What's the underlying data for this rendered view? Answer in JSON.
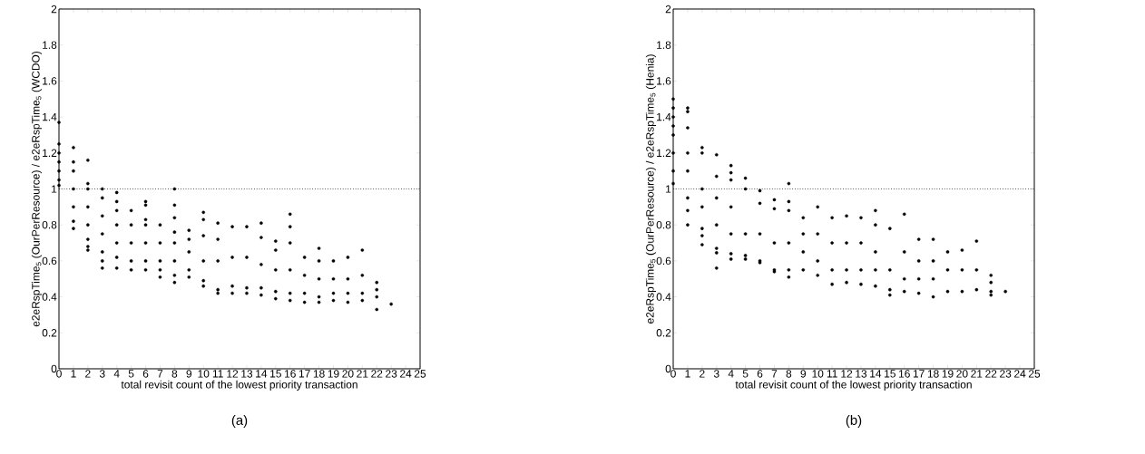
{
  "chart_data": [
    {
      "type": "scatter",
      "color": "#000000",
      "xlabel": "total revisit count of the lowest priority transaction",
      "ylabel": "e2eRspTime$_{5}$ (OurPerResource) / e2eRspTime$_{5}$ (WCDO)",
      "annotations": [
        "(a)"
      ],
      "xlim": [
        0,
        25
      ],
      "ylim": [
        0,
        2
      ],
      "xticks": [
        0,
        1,
        2,
        3,
        4,
        5,
        6,
        7,
        8,
        9,
        10,
        11,
        12,
        13,
        14,
        15,
        16,
        17,
        18,
        19,
        20,
        21,
        22,
        23,
        24,
        25
      ],
      "yticks": [
        0,
        0.2,
        0.4,
        0.6,
        0.8,
        1,
        1.2,
        1.4,
        1.6,
        1.8,
        2
      ],
      "ref_lines": [
        {
          "axis": "y",
          "value": 1,
          "line_style": "dotted",
          "color": "#000000"
        }
      ],
      "x": [
        0,
        0,
        0,
        0,
        0,
        0,
        0,
        1,
        1,
        1,
        1,
        1,
        1,
        1,
        2,
        2,
        2,
        2,
        2,
        2,
        2,
        2,
        3,
        3,
        3,
        3,
        3,
        3,
        3,
        4,
        4,
        4,
        4,
        4,
        4,
        4,
        5,
        5,
        5,
        5,
        5,
        6,
        6,
        6,
        6,
        6,
        6,
        6,
        7,
        7,
        7,
        7,
        7,
        8,
        8,
        8,
        8,
        8,
        8,
        8,
        8,
        9,
        9,
        9,
        9,
        9,
        10,
        10,
        10,
        10,
        10,
        10,
        11,
        11,
        11,
        11,
        11,
        12,
        12,
        12,
        12,
        13,
        13,
        13,
        13,
        14,
        14,
        14,
        14,
        14,
        15,
        15,
        15,
        15,
        15,
        16,
        16,
        16,
        16,
        16,
        16,
        17,
        17,
        17,
        17,
        18,
        18,
        18,
        18,
        18,
        19,
        19,
        19,
        19,
        20,
        20,
        20,
        20,
        21,
        21,
        21,
        21,
        22,
        22,
        22,
        22,
        23
      ],
      "values": [
        1.02,
        1.05,
        1.1,
        1.15,
        1.2,
        1.25,
        1.37,
        0.78,
        0.82,
        0.9,
        1.0,
        1.1,
        1.15,
        1.23,
        0.66,
        0.68,
        0.72,
        0.8,
        0.9,
        1.0,
        1.03,
        1.16,
        0.56,
        0.6,
        0.65,
        0.75,
        0.85,
        0.95,
        1.0,
        0.56,
        0.62,
        0.7,
        0.8,
        0.88,
        0.93,
        0.98,
        0.55,
        0.6,
        0.7,
        0.8,
        0.88,
        0.55,
        0.6,
        0.7,
        0.8,
        0.83,
        0.91,
        0.93,
        0.51,
        0.55,
        0.6,
        0.7,
        0.8,
        0.48,
        0.52,
        0.6,
        0.7,
        0.76,
        0.84,
        0.91,
        1.0,
        0.51,
        0.55,
        0.65,
        0.72,
        0.77,
        0.46,
        0.49,
        0.6,
        0.74,
        0.83,
        0.87,
        0.42,
        0.44,
        0.6,
        0.72,
        0.81,
        0.42,
        0.46,
        0.62,
        0.79,
        0.42,
        0.45,
        0.62,
        0.79,
        0.41,
        0.45,
        0.58,
        0.73,
        0.81,
        0.39,
        0.43,
        0.55,
        0.66,
        0.71,
        0.38,
        0.42,
        0.55,
        0.7,
        0.79,
        0.86,
        0.37,
        0.42,
        0.52,
        0.62,
        0.37,
        0.4,
        0.5,
        0.6,
        0.67,
        0.38,
        0.42,
        0.5,
        0.6,
        0.37,
        0.42,
        0.5,
        0.62,
        0.38,
        0.42,
        0.52,
        0.66,
        0.33,
        0.4,
        0.44,
        0.48,
        0.36
      ]
    },
    {
      "type": "scatter",
      "color": "#000000",
      "xlabel": "total revisit count of the lowest priority transaction",
      "ylabel": "e2eRspTime$_{5}$ (OurPerResource) / e2eRspTime$_{5}$ (Henia)",
      "annotations": [
        "(b)"
      ],
      "xlim": [
        0,
        25
      ],
      "ylim": [
        0,
        2
      ],
      "xticks": [
        0,
        1,
        2,
        3,
        4,
        5,
        6,
        7,
        8,
        9,
        10,
        11,
        12,
        13,
        14,
        15,
        16,
        17,
        18,
        19,
        20,
        21,
        22,
        23,
        24,
        25
      ],
      "yticks": [
        0,
        0.2,
        0.4,
        0.6,
        0.8,
        1,
        1.2,
        1.4,
        1.6,
        1.8,
        2
      ],
      "ref_lines": [
        {
          "axis": "y",
          "value": 1,
          "line_style": "dotted",
          "color": "#000000"
        }
      ],
      "x": [
        0,
        0,
        0,
        0,
        0,
        0,
        0,
        0,
        1,
        1,
        1,
        1,
        1,
        1,
        1,
        1,
        2,
        2,
        2,
        2,
        2,
        2,
        2,
        3,
        3,
        3,
        3,
        3,
        3,
        3,
        4,
        4,
        4,
        4,
        4,
        4,
        4,
        5,
        5,
        5,
        5,
        5,
        6,
        6,
        6,
        6,
        6,
        7,
        7,
        7,
        7,
        7,
        8,
        8,
        8,
        8,
        8,
        8,
        9,
        9,
        9,
        9,
        10,
        10,
        10,
        10,
        11,
        11,
        11,
        11,
        12,
        12,
        12,
        12,
        13,
        13,
        13,
        13,
        14,
        14,
        14,
        14,
        14,
        15,
        15,
        15,
        15,
        16,
        16,
        16,
        16,
        17,
        17,
        17,
        17,
        18,
        18,
        18,
        18,
        19,
        19,
        19,
        20,
        20,
        20,
        21,
        21,
        21,
        22,
        22,
        22,
        22,
        23
      ],
      "values": [
        1.03,
        1.1,
        1.2,
        1.3,
        1.35,
        1.4,
        1.45,
        1.5,
        0.8,
        0.88,
        0.95,
        1.1,
        1.2,
        1.34,
        1.43,
        1.45,
        0.69,
        0.74,
        0.78,
        0.9,
        1.0,
        1.2,
        1.23,
        0.56,
        0.645,
        0.67,
        0.8,
        0.95,
        1.07,
        1.19,
        0.61,
        0.64,
        0.75,
        0.9,
        1.05,
        1.09,
        1.13,
        0.61,
        0.63,
        0.75,
        1.0,
        1.06,
        0.59,
        0.6,
        0.75,
        0.92,
        0.99,
        0.54,
        0.55,
        0.7,
        0.89,
        0.94,
        0.51,
        0.55,
        0.7,
        0.88,
        0.93,
        1.03,
        0.55,
        0.65,
        0.75,
        0.84,
        0.52,
        0.6,
        0.75,
        0.9,
        0.47,
        0.55,
        0.7,
        0.84,
        0.48,
        0.55,
        0.7,
        0.85,
        0.47,
        0.55,
        0.7,
        0.84,
        0.46,
        0.55,
        0.65,
        0.8,
        0.88,
        0.41,
        0.44,
        0.55,
        0.78,
        0.43,
        0.5,
        0.65,
        0.86,
        0.42,
        0.5,
        0.6,
        0.72,
        0.4,
        0.5,
        0.6,
        0.72,
        0.43,
        0.55,
        0.65,
        0.43,
        0.55,
        0.66,
        0.44,
        0.55,
        0.71,
        0.41,
        0.43,
        0.48,
        0.52,
        0.43
      ]
    }
  ]
}
